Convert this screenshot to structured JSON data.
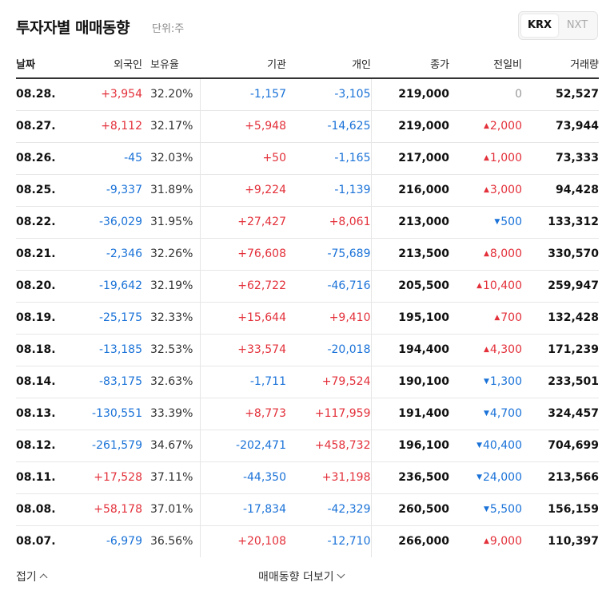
{
  "header": {
    "title": "투자자별 매매동향",
    "unit": "단위:주"
  },
  "exchange_tabs": [
    {
      "label": "KRX",
      "selected": true
    },
    {
      "label": "NXT",
      "selected": false
    }
  ],
  "columns": [
    "날짜",
    "외국인",
    "보유율",
    "기관",
    "개인",
    "종가",
    "전일비",
    "거래량"
  ],
  "rows": [
    {
      "date": "08.28.",
      "foreign": "+3,954",
      "own": "32.20%",
      "inst": "-1,157",
      "indiv": "-3,105",
      "close": "219,000",
      "dir": "flat",
      "change": "0",
      "volume": "52,527"
    },
    {
      "date": "08.27.",
      "foreign": "+8,112",
      "own": "32.17%",
      "inst": "+5,948",
      "indiv": "-14,625",
      "close": "219,000",
      "dir": "up",
      "change": "2,000",
      "volume": "73,944"
    },
    {
      "date": "08.26.",
      "foreign": "-45",
      "own": "32.03%",
      "inst": "+50",
      "indiv": "-1,165",
      "close": "217,000",
      "dir": "up",
      "change": "1,000",
      "volume": "73,333"
    },
    {
      "date": "08.25.",
      "foreign": "-9,337",
      "own": "31.89%",
      "inst": "+9,224",
      "indiv": "-1,139",
      "close": "216,000",
      "dir": "up",
      "change": "3,000",
      "volume": "94,428"
    },
    {
      "date": "08.22.",
      "foreign": "-36,029",
      "own": "31.95%",
      "inst": "+27,427",
      "indiv": "+8,061",
      "close": "213,000",
      "dir": "down",
      "change": "500",
      "volume": "133,312"
    },
    {
      "date": "08.21.",
      "foreign": "-2,346",
      "own": "32.26%",
      "inst": "+76,608",
      "indiv": "-75,689",
      "close": "213,500",
      "dir": "up",
      "change": "8,000",
      "volume": "330,570"
    },
    {
      "date": "08.20.",
      "foreign": "-19,642",
      "own": "32.19%",
      "inst": "+62,722",
      "indiv": "-46,716",
      "close": "205,500",
      "dir": "up",
      "change": "10,400",
      "volume": "259,947"
    },
    {
      "date": "08.19.",
      "foreign": "-25,175",
      "own": "32.33%",
      "inst": "+15,644",
      "indiv": "+9,410",
      "close": "195,100",
      "dir": "up",
      "change": "700",
      "volume": "132,428"
    },
    {
      "date": "08.18.",
      "foreign": "-13,185",
      "own": "32.53%",
      "inst": "+33,574",
      "indiv": "-20,018",
      "close": "194,400",
      "dir": "up",
      "change": "4,300",
      "volume": "171,239"
    },
    {
      "date": "08.14.",
      "foreign": "-83,175",
      "own": "32.63%",
      "inst": "-1,711",
      "indiv": "+79,524",
      "close": "190,100",
      "dir": "down",
      "change": "1,300",
      "volume": "233,501"
    },
    {
      "date": "08.13.",
      "foreign": "-130,551",
      "own": "33.39%",
      "inst": "+8,773",
      "indiv": "+117,959",
      "close": "191,400",
      "dir": "down",
      "change": "4,700",
      "volume": "324,457"
    },
    {
      "date": "08.12.",
      "foreign": "-261,579",
      "own": "34.67%",
      "inst": "-202,471",
      "indiv": "+458,732",
      "close": "196,100",
      "dir": "down",
      "change": "40,400",
      "volume": "704,699"
    },
    {
      "date": "08.11.",
      "foreign": "+17,528",
      "own": "37.11%",
      "inst": "-44,350",
      "indiv": "+31,198",
      "close": "236,500",
      "dir": "down",
      "change": "24,000",
      "volume": "213,566"
    },
    {
      "date": "08.08.",
      "foreign": "+58,178",
      "own": "37.01%",
      "inst": "-17,834",
      "indiv": "-42,329",
      "close": "260,500",
      "dir": "down",
      "change": "5,500",
      "volume": "156,159"
    },
    {
      "date": "08.07.",
      "foreign": "-6,979",
      "own": "36.56%",
      "inst": "+20,108",
      "indiv": "-12,710",
      "close": "266,000",
      "dir": "up",
      "change": "9,000",
      "volume": "110,397"
    }
  ],
  "footer": {
    "fold_label": "접기",
    "more_label": "매매동향 더보기"
  },
  "colors": {
    "positive": "#e3303a",
    "negative": "#1a72d8",
    "neutral": "#999999"
  },
  "icons": {
    "up": "up-triangle-icon",
    "down": "down-triangle-icon",
    "fold": "chevron-up-icon",
    "more": "chevron-down-icon"
  }
}
